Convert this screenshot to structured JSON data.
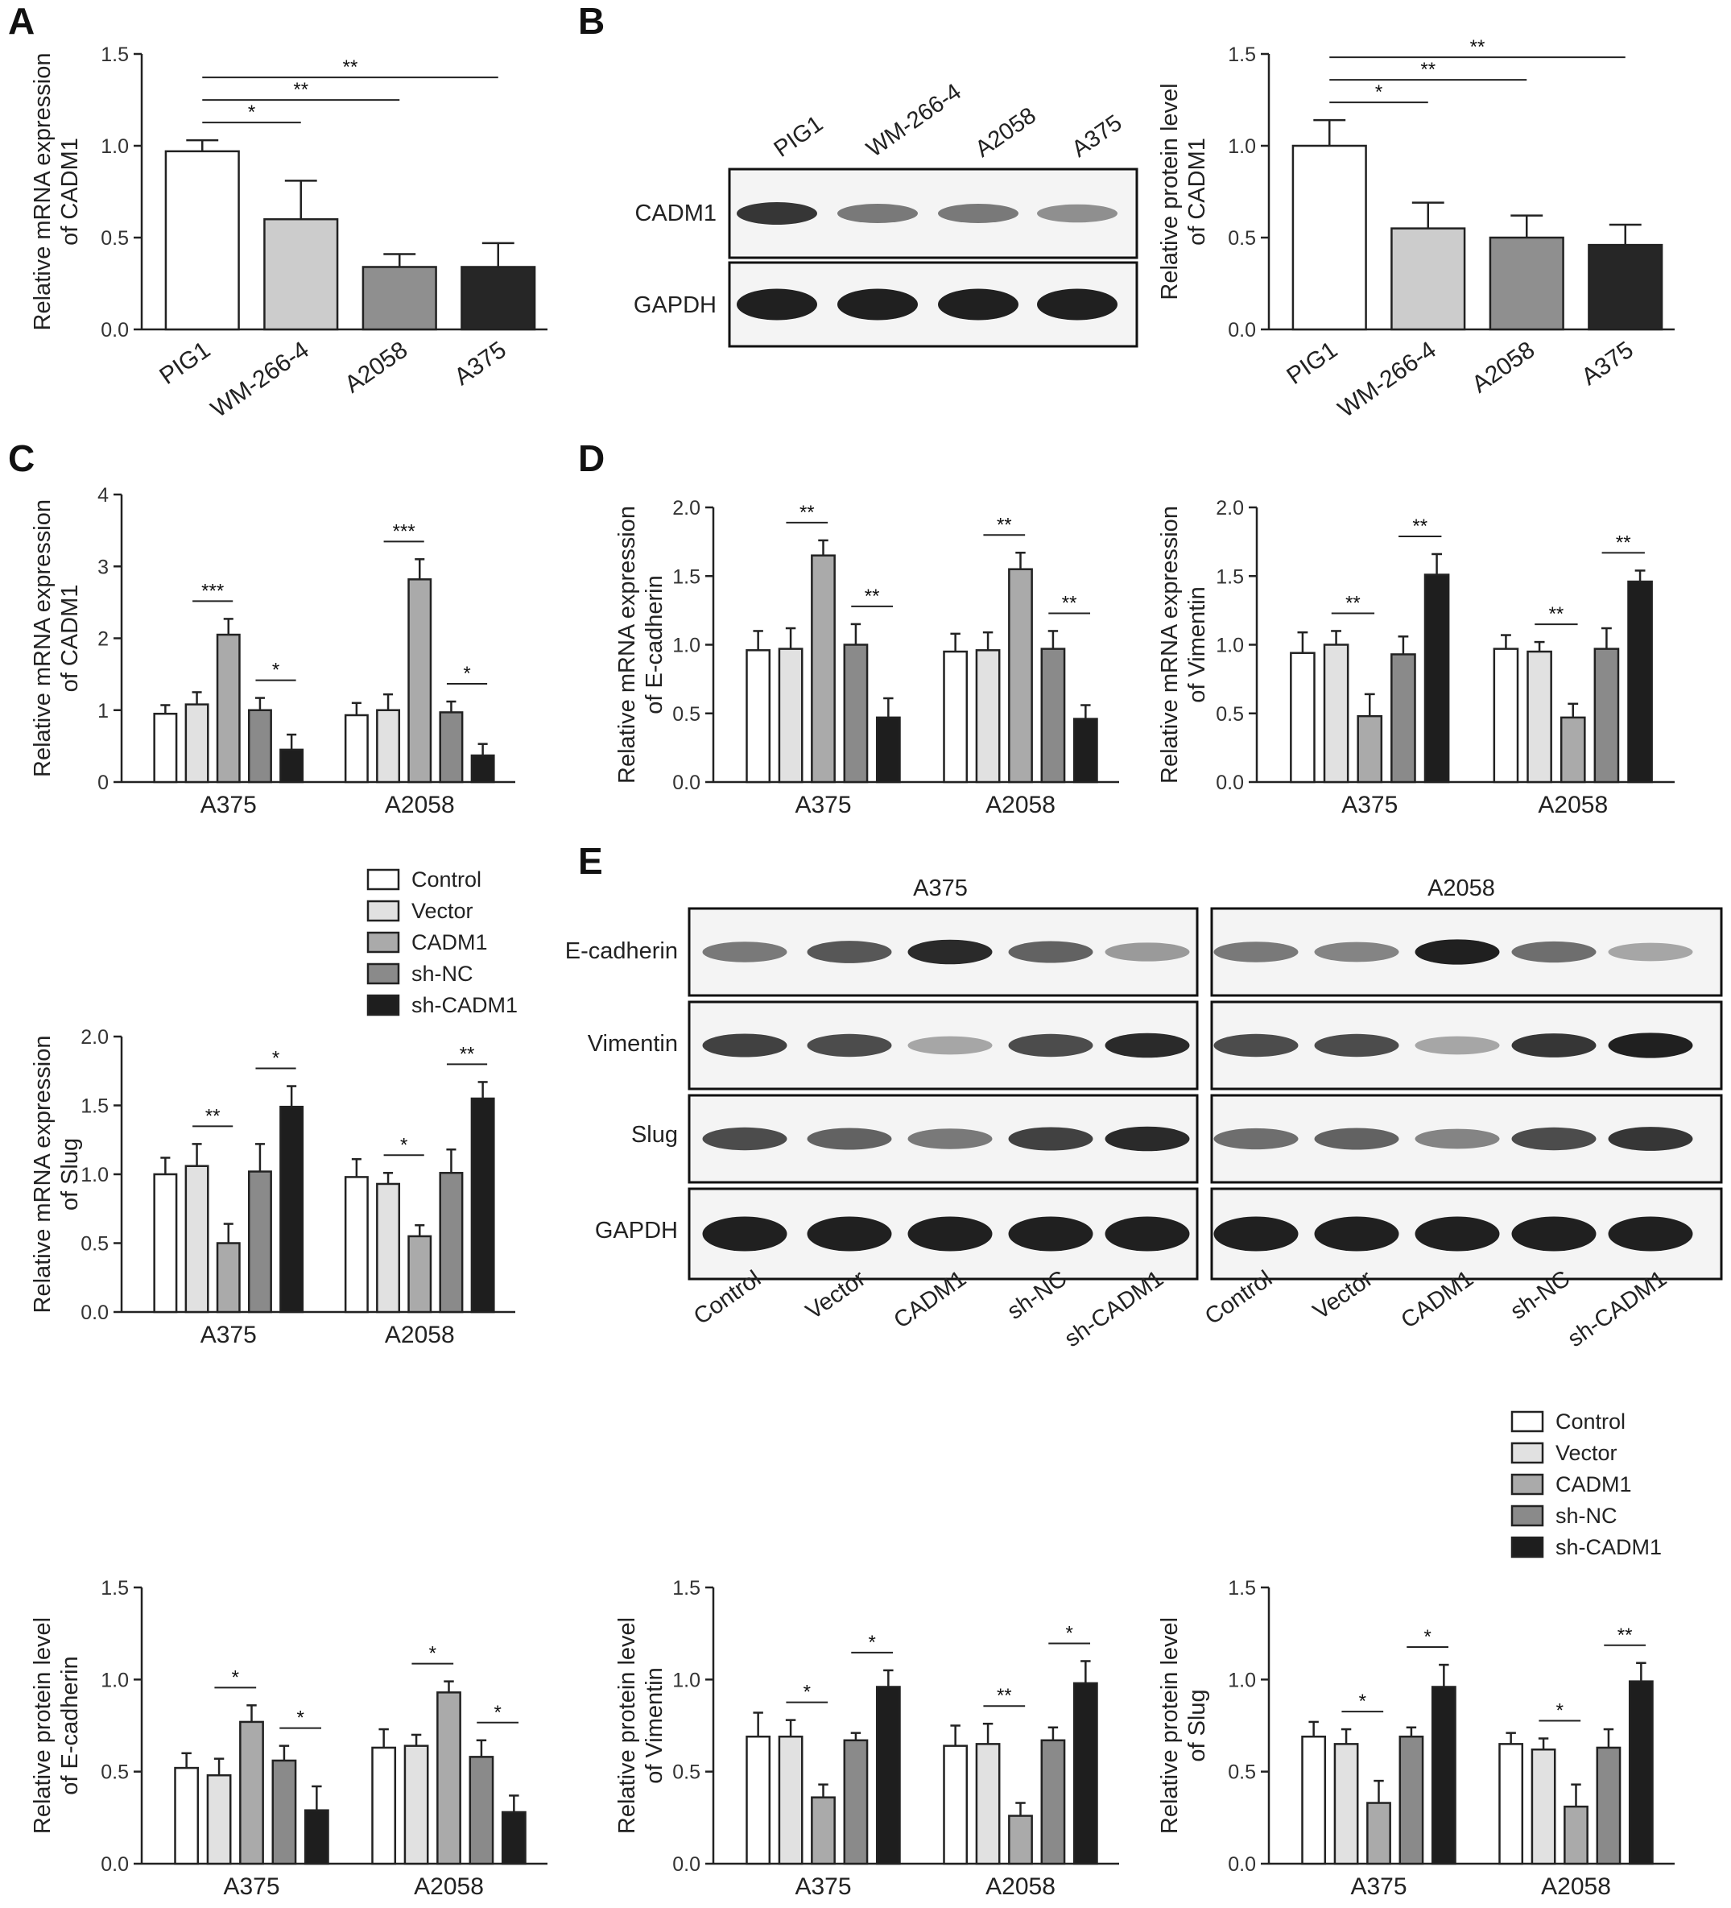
{
  "figure": {
    "panel_labels": [
      "A",
      "B",
      "C",
      "D",
      "E"
    ]
  },
  "legend": {
    "items": [
      {
        "label": "Control",
        "color": "#ffffff"
      },
      {
        "label": "Vector",
        "color": "#e1e1e1"
      },
      {
        "label": "CADM1",
        "color": "#aaaaaa"
      },
      {
        "label": "sh-NC",
        "color": "#8a8a8a"
      },
      {
        "label": "sh-CADM1",
        "color": "#1e1e1e"
      }
    ]
  },
  "blots": {
    "B": {
      "lanes": [
        "PIG1",
        "WM-266-4",
        "A2058",
        "A375"
      ],
      "rows": [
        "CADM1",
        "GAPDH"
      ],
      "intensity": {
        "CADM1": [
          0.85,
          0.55,
          0.55,
          0.45
        ],
        "GAPDH": [
          0.95,
          0.95,
          0.95,
          0.95
        ]
      }
    },
    "E": {
      "groups": [
        "A375",
        "A2058"
      ],
      "lanes": [
        "Control",
        "Vector",
        "CADM1",
        "sh-NC",
        "sh-CADM1"
      ],
      "rows": [
        "E-cadherin",
        "Vimentin",
        "Slug",
        "GAPDH"
      ],
      "intensity": {
        "E-cadherin": [
          [
            0.55,
            0.7,
            0.9,
            0.65,
            0.4
          ],
          [
            0.55,
            0.5,
            0.95,
            0.6,
            0.35
          ]
        ],
        "Vimentin": [
          [
            0.8,
            0.75,
            0.35,
            0.75,
            0.9
          ],
          [
            0.75,
            0.75,
            0.35,
            0.85,
            0.95
          ]
        ],
        "Slug": [
          [
            0.75,
            0.65,
            0.55,
            0.8,
            0.9
          ],
          [
            0.6,
            0.65,
            0.5,
            0.75,
            0.85
          ]
        ],
        "GAPDH": [
          [
            0.95,
            0.95,
            0.95,
            0.95,
            0.95
          ],
          [
            0.95,
            0.95,
            0.95,
            0.95,
            0.95
          ]
        ]
      }
    }
  },
  "chart_data": [
    {
      "id": "A",
      "type": "bar",
      "ylabel": [
        "Relative mRNA expression",
        "of CADM1"
      ],
      "categories": [
        "PIG1",
        "WM-266-4",
        "A2058",
        "A375"
      ],
      "values": [
        0.97,
        0.6,
        0.34,
        0.34
      ],
      "errors": [
        0.06,
        0.21,
        0.07,
        0.13
      ],
      "colors": [
        "#ffffff",
        "#cccccc",
        "#8f8f8f",
        "#262626"
      ],
      "ylim": [
        0,
        1.5
      ],
      "yticks": [
        "0.0",
        "0.5",
        "1.0",
        "1.5"
      ],
      "sig": [
        {
          "from": 0,
          "to": 1,
          "label": "*"
        },
        {
          "from": 0,
          "to": 2,
          "label": "**"
        },
        {
          "from": 0,
          "to": 3,
          "label": "**"
        }
      ]
    },
    {
      "id": "B",
      "type": "bar",
      "ylabel": [
        "Relative protein level",
        "of CADM1"
      ],
      "categories": [
        "PIG1",
        "WM-266-4",
        "A2058",
        "A375"
      ],
      "values": [
        1.0,
        0.55,
        0.5,
        0.46
      ],
      "errors": [
        0.14,
        0.14,
        0.12,
        0.11
      ],
      "colors": [
        "#ffffff",
        "#cccccc",
        "#8f8f8f",
        "#262626"
      ],
      "ylim": [
        0,
        1.5
      ],
      "yticks": [
        "0.0",
        "0.5",
        "1.0",
        "1.5"
      ],
      "sig": [
        {
          "from": 0,
          "to": 1,
          "label": "*"
        },
        {
          "from": 0,
          "to": 2,
          "label": "**"
        },
        {
          "from": 0,
          "to": 3,
          "label": "**"
        }
      ]
    },
    {
      "id": "C",
      "type": "bar",
      "ylabel": [
        "Relative mRNA expression",
        "of CADM1"
      ],
      "groups": [
        "A375",
        "A2058"
      ],
      "series": [
        {
          "name": "Control",
          "values": [
            0.95,
            0.93
          ],
          "errors": [
            0.12,
            0.17
          ]
        },
        {
          "name": "Vector",
          "values": [
            1.08,
            1.0
          ],
          "errors": [
            0.17,
            0.22
          ]
        },
        {
          "name": "CADM1",
          "values": [
            2.05,
            2.82
          ],
          "errors": [
            0.22,
            0.28
          ]
        },
        {
          "name": "sh-NC",
          "values": [
            1.0,
            0.97
          ],
          "errors": [
            0.17,
            0.15
          ]
        },
        {
          "name": "sh-CADM1",
          "values": [
            0.45,
            0.37
          ],
          "errors": [
            0.21,
            0.16
          ]
        }
      ],
      "ylim": [
        0,
        4
      ],
      "yticks": [
        "0",
        "1",
        "2",
        "3",
        "4"
      ],
      "sig": [
        {
          "group": 0,
          "from": 1,
          "to": 2,
          "label": "***"
        },
        {
          "group": 0,
          "from": 3,
          "to": 4,
          "label": "*"
        },
        {
          "group": 1,
          "from": 1,
          "to": 2,
          "label": "***"
        },
        {
          "group": 1,
          "from": 3,
          "to": 4,
          "label": "*"
        }
      ]
    },
    {
      "id": "D1",
      "type": "bar",
      "ylabel": [
        "Relative mRNA expression",
        "of E-cadherin"
      ],
      "groups": [
        "A375",
        "A2058"
      ],
      "series": [
        {
          "name": "Control",
          "values": [
            0.96,
            0.95
          ],
          "errors": [
            0.14,
            0.13
          ]
        },
        {
          "name": "Vector",
          "values": [
            0.97,
            0.96
          ],
          "errors": [
            0.15,
            0.13
          ]
        },
        {
          "name": "CADM1",
          "values": [
            1.65,
            1.55
          ],
          "errors": [
            0.11,
            0.12
          ]
        },
        {
          "name": "sh-NC",
          "values": [
            1.0,
            0.97
          ],
          "errors": [
            0.15,
            0.13
          ]
        },
        {
          "name": "sh-CADM1",
          "values": [
            0.47,
            0.46
          ],
          "errors": [
            0.14,
            0.1
          ]
        }
      ],
      "ylim": [
        0,
        2
      ],
      "yticks": [
        "0.0",
        "0.5",
        "1.0",
        "1.5",
        "2.0"
      ],
      "sig": [
        {
          "group": 0,
          "from": 1,
          "to": 2,
          "label": "**"
        },
        {
          "group": 0,
          "from": 3,
          "to": 4,
          "label": "**"
        },
        {
          "group": 1,
          "from": 1,
          "to": 2,
          "label": "**"
        },
        {
          "group": 1,
          "from": 3,
          "to": 4,
          "label": "**"
        }
      ]
    },
    {
      "id": "D2",
      "type": "bar",
      "ylabel": [
        "Relative mRNA expression",
        "of Vimentin"
      ],
      "groups": [
        "A375",
        "A2058"
      ],
      "series": [
        {
          "name": "Control",
          "values": [
            0.94,
            0.97
          ],
          "errors": [
            0.15,
            0.1
          ]
        },
        {
          "name": "Vector",
          "values": [
            1.0,
            0.95
          ],
          "errors": [
            0.1,
            0.07
          ]
        },
        {
          "name": "CADM1",
          "values": [
            0.48,
            0.47
          ],
          "errors": [
            0.16,
            0.1
          ]
        },
        {
          "name": "sh-NC",
          "values": [
            0.93,
            0.97
          ],
          "errors": [
            0.13,
            0.15
          ]
        },
        {
          "name": "sh-CADM1",
          "values": [
            1.51,
            1.46
          ],
          "errors": [
            0.15,
            0.08
          ]
        }
      ],
      "ylim": [
        0,
        2
      ],
      "yticks": [
        "0.0",
        "0.5",
        "1.0",
        "1.5",
        "2.0"
      ],
      "sig": [
        {
          "group": 0,
          "from": 1,
          "to": 2,
          "label": "**"
        },
        {
          "group": 0,
          "from": 3,
          "to": 4,
          "label": "**"
        },
        {
          "group": 1,
          "from": 1,
          "to": 2,
          "label": "**"
        },
        {
          "group": 1,
          "from": 3,
          "to": 4,
          "label": "**"
        }
      ]
    },
    {
      "id": "C2",
      "type": "bar",
      "ylabel": [
        "Relative mRNA expression",
        "of Slug"
      ],
      "groups": [
        "A375",
        "A2058"
      ],
      "series": [
        {
          "name": "Control",
          "values": [
            1.0,
            0.98
          ],
          "errors": [
            0.12,
            0.13
          ]
        },
        {
          "name": "Vector",
          "values": [
            1.06,
            0.93
          ],
          "errors": [
            0.16,
            0.08
          ]
        },
        {
          "name": "CADM1",
          "values": [
            0.5,
            0.55
          ],
          "errors": [
            0.14,
            0.08
          ]
        },
        {
          "name": "sh-NC",
          "values": [
            1.02,
            1.01
          ],
          "errors": [
            0.2,
            0.17
          ]
        },
        {
          "name": "sh-CADM1",
          "values": [
            1.49,
            1.55
          ],
          "errors": [
            0.15,
            0.12
          ]
        }
      ],
      "ylim": [
        0,
        2
      ],
      "yticks": [
        "0.0",
        "0.5",
        "1.0",
        "1.5",
        "2.0"
      ],
      "sig": [
        {
          "group": 0,
          "from": 1,
          "to": 2,
          "label": "**"
        },
        {
          "group": 0,
          "from": 3,
          "to": 4,
          "label": "*"
        },
        {
          "group": 1,
          "from": 1,
          "to": 2,
          "label": "*"
        },
        {
          "group": 1,
          "from": 3,
          "to": 4,
          "label": "**"
        }
      ]
    },
    {
      "id": "E1",
      "type": "bar",
      "ylabel": [
        "Relative protein level",
        "of E-cadherin"
      ],
      "groups": [
        "A375",
        "A2058"
      ],
      "series": [
        {
          "name": "Control",
          "values": [
            0.52,
            0.63
          ],
          "errors": [
            0.08,
            0.1
          ]
        },
        {
          "name": "Vector",
          "values": [
            0.48,
            0.64
          ],
          "errors": [
            0.09,
            0.06
          ]
        },
        {
          "name": "CADM1",
          "values": [
            0.77,
            0.93
          ],
          "errors": [
            0.09,
            0.06
          ]
        },
        {
          "name": "sh-NC",
          "values": [
            0.56,
            0.58
          ],
          "errors": [
            0.08,
            0.09
          ]
        },
        {
          "name": "sh-CADM1",
          "values": [
            0.29,
            0.28
          ],
          "errors": [
            0.13,
            0.09
          ]
        }
      ],
      "ylim": [
        0,
        1.5
      ],
      "yticks": [
        "0.0",
        "0.5",
        "1.0",
        "1.5"
      ],
      "sig": [
        {
          "group": 0,
          "from": 1,
          "to": 2,
          "label": "*"
        },
        {
          "group": 0,
          "from": 3,
          "to": 4,
          "label": "*"
        },
        {
          "group": 1,
          "from": 1,
          "to": 2,
          "label": "*"
        },
        {
          "group": 1,
          "from": 3,
          "to": 4,
          "label": "*"
        }
      ]
    },
    {
      "id": "E2",
      "type": "bar",
      "ylabel": [
        "Relative protein level",
        "of Vimentin"
      ],
      "groups": [
        "A375",
        "A2058"
      ],
      "series": [
        {
          "name": "Control",
          "values": [
            0.69,
            0.64
          ],
          "errors": [
            0.13,
            0.11
          ]
        },
        {
          "name": "Vector",
          "values": [
            0.69,
            0.65
          ],
          "errors": [
            0.09,
            0.11
          ]
        },
        {
          "name": "CADM1",
          "values": [
            0.36,
            0.26
          ],
          "errors": [
            0.07,
            0.07
          ]
        },
        {
          "name": "sh-NC",
          "values": [
            0.67,
            0.67
          ],
          "errors": [
            0.04,
            0.07
          ]
        },
        {
          "name": "sh-CADM1",
          "values": [
            0.96,
            0.98
          ],
          "errors": [
            0.09,
            0.12
          ]
        }
      ],
      "ylim": [
        0,
        1.5
      ],
      "yticks": [
        "0.0",
        "0.5",
        "1.0",
        "1.5"
      ],
      "sig": [
        {
          "group": 0,
          "from": 1,
          "to": 2,
          "label": "*"
        },
        {
          "group": 0,
          "from": 3,
          "to": 4,
          "label": "*"
        },
        {
          "group": 1,
          "from": 1,
          "to": 2,
          "label": "**"
        },
        {
          "group": 1,
          "from": 3,
          "to": 4,
          "label": "*"
        }
      ]
    },
    {
      "id": "E3",
      "type": "bar",
      "ylabel": [
        "Relative protein level",
        "of Slug"
      ],
      "groups": [
        "A375",
        "A2058"
      ],
      "series": [
        {
          "name": "Control",
          "values": [
            0.69,
            0.65
          ],
          "errors": [
            0.08,
            0.06
          ]
        },
        {
          "name": "Vector",
          "values": [
            0.65,
            0.62
          ],
          "errors": [
            0.08,
            0.06
          ]
        },
        {
          "name": "CADM1",
          "values": [
            0.33,
            0.31
          ],
          "errors": [
            0.12,
            0.12
          ]
        },
        {
          "name": "sh-NC",
          "values": [
            0.69,
            0.63
          ],
          "errors": [
            0.05,
            0.1
          ]
        },
        {
          "name": "sh-CADM1",
          "values": [
            0.96,
            0.99
          ],
          "errors": [
            0.12,
            0.1
          ]
        }
      ],
      "ylim": [
        0,
        1.5
      ],
      "yticks": [
        "0.0",
        "0.5",
        "1.0",
        "1.5"
      ],
      "sig": [
        {
          "group": 0,
          "from": 1,
          "to": 2,
          "label": "*"
        },
        {
          "group": 0,
          "from": 3,
          "to": 4,
          "label": "*"
        },
        {
          "group": 1,
          "from": 1,
          "to": 2,
          "label": "*"
        },
        {
          "group": 1,
          "from": 3,
          "to": 4,
          "label": "**"
        }
      ]
    }
  ]
}
